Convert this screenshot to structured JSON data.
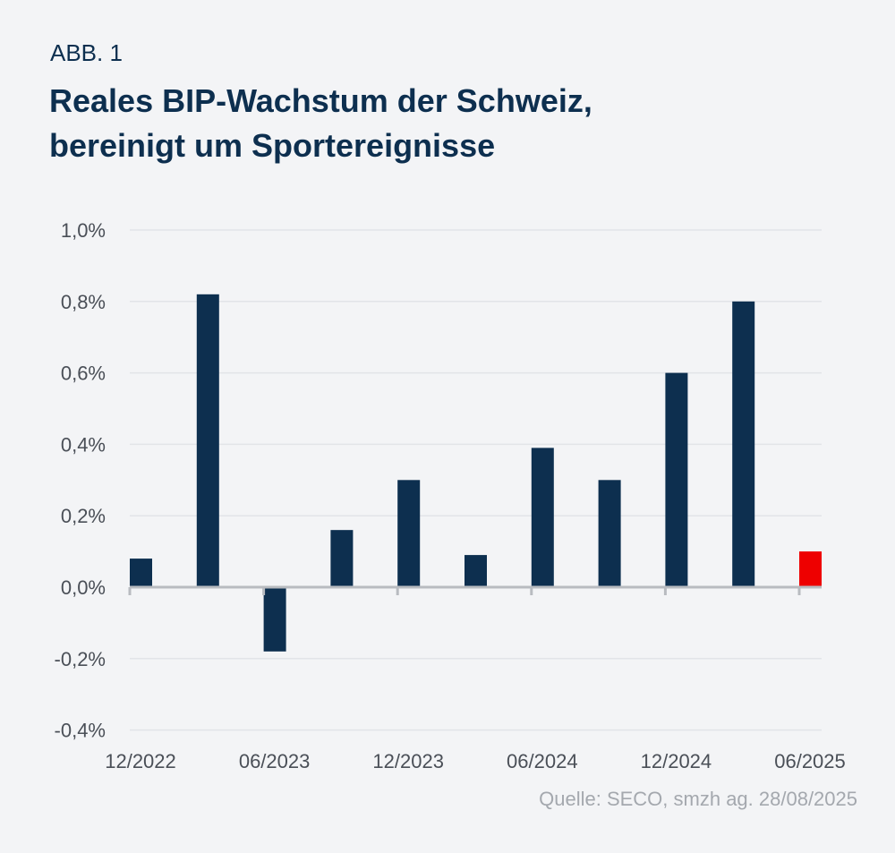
{
  "figure_label": "ABB. 1",
  "title_line1": "Reales BIP-Wachstum der Schweiz,",
  "title_line2": "bereinigt um Sportereignisse",
  "source": "Quelle: SECO, smzh ag. 28/08/2025",
  "chart_data": {
    "type": "bar",
    "title": "Reales BIP-Wachstum der Schweiz, bereinigt um Sportereignisse",
    "categories": [
      "12/2022",
      "03/2023",
      "06/2023",
      "09/2023",
      "12/2023",
      "03/2024",
      "06/2024",
      "09/2024",
      "12/2024",
      "03/2025",
      "06/2025"
    ],
    "values": [
      0.08,
      0.82,
      -0.18,
      0.16,
      0.3,
      0.09,
      0.39,
      0.3,
      0.6,
      0.8,
      0.1
    ],
    "highlight_index": 10,
    "ylim": [
      -0.4,
      1.0
    ],
    "yticks": [
      1.0,
      0.8,
      0.6,
      0.4,
      0.2,
      0.0,
      -0.2,
      -0.4
    ],
    "ytick_labels": [
      "1,0%",
      "0,8%",
      "0,6%",
      "0,4%",
      "0,2%",
      "0,0%",
      "-0,2%",
      "-0,4%"
    ],
    "xtick_labels": [
      "12/2022",
      "06/2023",
      "12/2023",
      "06/2024",
      "12/2024",
      "06/2025"
    ],
    "xtick_category_indices": [
      0,
      2,
      4,
      6,
      8,
      10
    ],
    "grid": true,
    "colors": {
      "bar": "#0d2f4f",
      "highlight": "#ee0000",
      "grid": "#e2e4e8",
      "axis": "#b8bbc0"
    }
  }
}
